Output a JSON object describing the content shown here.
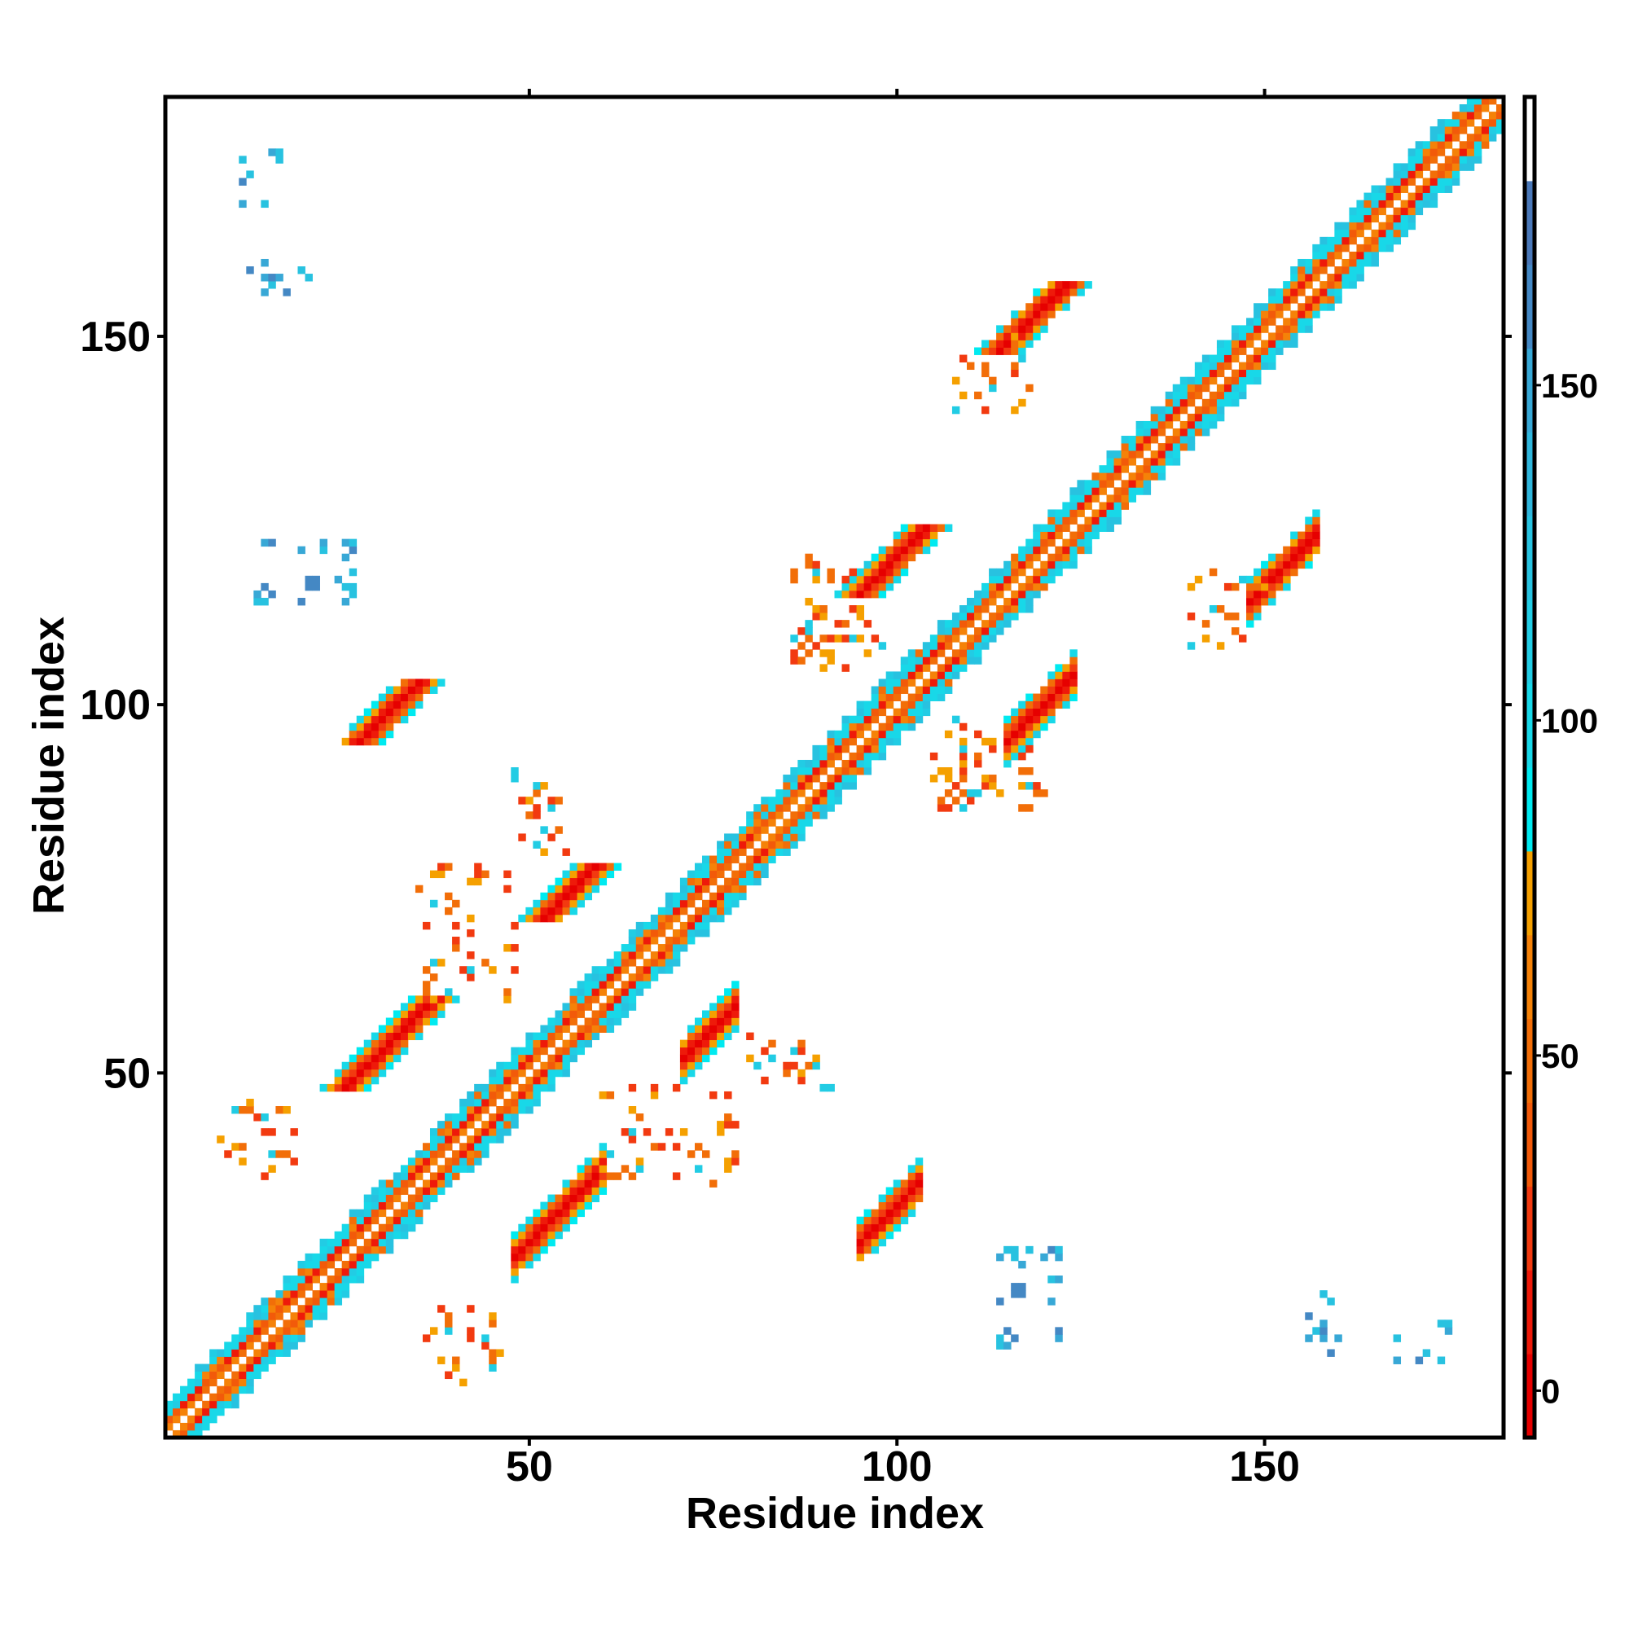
{
  "chart_data": {
    "type": "heatmap",
    "title": "",
    "xlabel": "Residue index",
    "ylabel": "Residue index",
    "xlim": [
      0.5,
      182.5
    ],
    "ylim": [
      0.5,
      182.5
    ],
    "n_residues": 182,
    "x_ticks": [
      50,
      100,
      150
    ],
    "y_ticks": [
      50,
      100,
      150
    ],
    "x_tick_labels": [
      "50",
      "100",
      "150"
    ],
    "y_tick_labels": [
      "50",
      "100",
      "150"
    ],
    "colorbar": {
      "range": [
        -7,
        193
      ],
      "ticks": [
        0,
        50,
        100,
        150
      ],
      "tick_labels": [
        "0",
        "50",
        "100",
        "150"
      ],
      "bands": [
        {
          "lo": -7,
          "hi": 5.5,
          "color": "#e60000"
        },
        {
          "lo": 5.5,
          "hi": 18,
          "color": "#ee1a0a"
        },
        {
          "lo": 18,
          "hi": 30.5,
          "color": "#f23a10"
        },
        {
          "lo": 30.5,
          "hi": 43,
          "color": "#f25a0a"
        },
        {
          "lo": 43,
          "hi": 55.5,
          "color": "#f26e08"
        },
        {
          "lo": 55.5,
          "hi": 68,
          "color": "#f58208"
        },
        {
          "lo": 68,
          "hi": 80.5,
          "color": "#f5a000"
        },
        {
          "lo": 80.5,
          "hi": 93,
          "color": "#00eaf0"
        },
        {
          "lo": 93,
          "hi": 105.5,
          "color": "#18d8e8"
        },
        {
          "lo": 105.5,
          "hi": 118,
          "color": "#22cce4"
        },
        {
          "lo": 118,
          "hi": 130.5,
          "color": "#28c2e0"
        },
        {
          "lo": 130.5,
          "hi": 143,
          "color": "#30b6dc"
        },
        {
          "lo": 143,
          "hi": 155.5,
          "color": "#38a8d6"
        },
        {
          "lo": 155.5,
          "hi": 168,
          "color": "#4488c4"
        },
        {
          "lo": 168,
          "hi": 180.5,
          "color": "#4a78b8"
        },
        {
          "lo": 180.5,
          "hi": 193,
          "color": "#ffffff"
        }
      ]
    },
    "diagonal_band_width": 5,
    "contact_blocks": [
      {
        "i": [
          27,
          35
        ],
        "j": [
          95,
          103
        ],
        "kind": "parallel"
      },
      {
        "i": [
          25,
          37
        ],
        "j": [
          48,
          60
        ],
        "kind": "parallel"
      },
      {
        "i": [
          52,
          59
        ],
        "j": [
          71,
          78
        ],
        "kind": "parallel"
      },
      {
        "i": [
          95,
          104
        ],
        "j": [
          115,
          124
        ],
        "kind": "parallel"
      },
      {
        "i": [
          114,
          123
        ],
        "j": [
          148,
          157
        ],
        "kind": "parallel"
      },
      {
        "i": [
          36,
          46
        ],
        "j": [
          8,
          18
        ],
        "kind": "sparse"
      },
      {
        "i": [
          11,
          16
        ],
        "j": [
          168,
          175
        ],
        "kind": "sparse-blue"
      },
      {
        "i": [
          12,
          20
        ],
        "j": [
          154,
          160
        ],
        "kind": "sparse-blue"
      },
      {
        "i": [
          13,
          26
        ],
        "j": [
          113,
          122
        ],
        "kind": "sparse-blue"
      },
      {
        "i": [
          105,
          120
        ],
        "j": [
          86,
          98
        ],
        "kind": "sparse"
      },
      {
        "i": [
          60,
          78
        ],
        "j": [
          35,
          48
        ],
        "kind": "sparse"
      },
      {
        "i": [
          80,
          92
        ],
        "j": [
          48,
          55
        ],
        "kind": "sparse"
      },
      {
        "i": [
          140,
          150
        ],
        "j": [
          108,
          118
        ],
        "kind": "sparse"
      }
    ]
  }
}
